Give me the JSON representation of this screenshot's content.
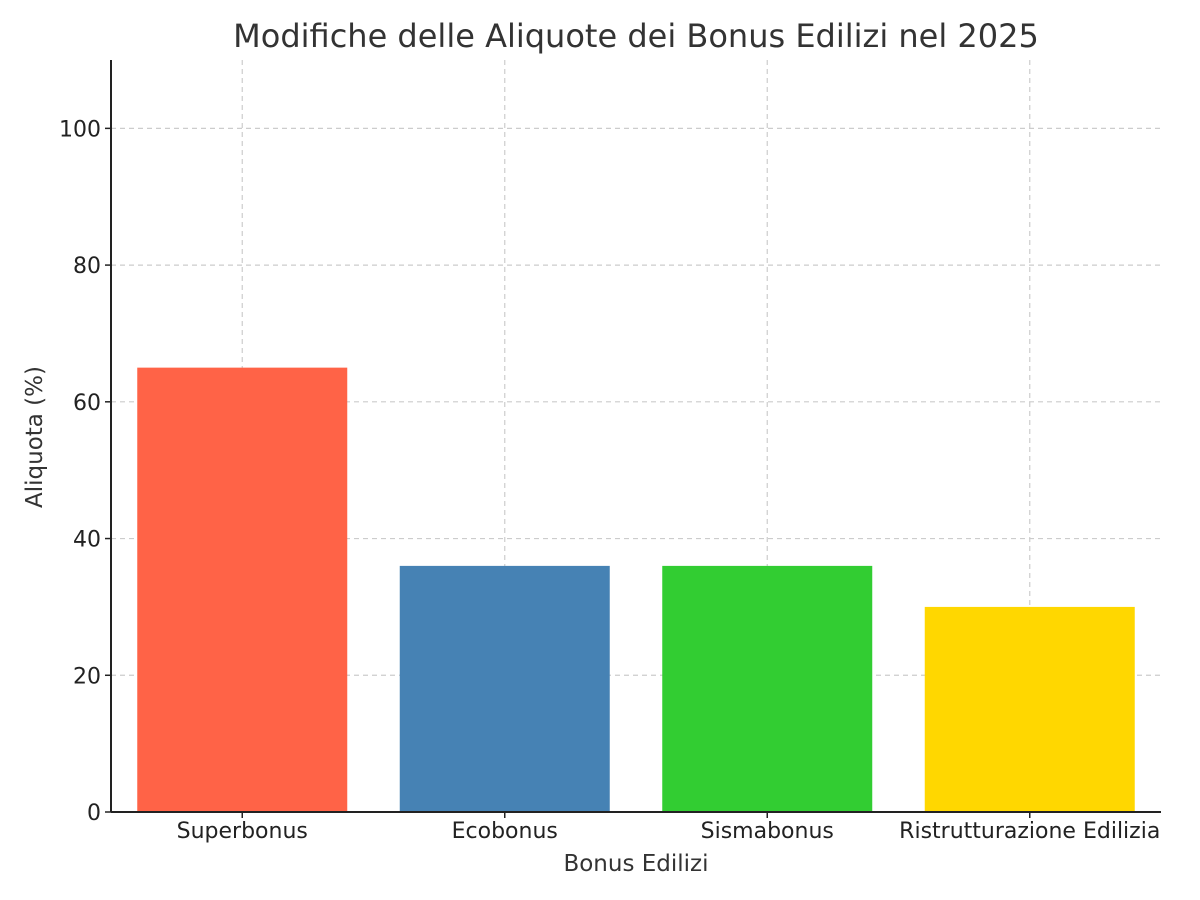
{
  "chart_data": {
    "type": "bar",
    "title": "Modifiche delle Aliquote dei Bonus Edilizi nel 2025",
    "xlabel": "Bonus Edilizi",
    "ylabel": "Aliquota (%)",
    "categories": [
      "Superbonus",
      "Ecobonus",
      "Sismabonus",
      "Ristrutturazione Edilizia"
    ],
    "values": [
      65,
      36,
      36,
      30
    ],
    "colors": [
      "#ff6347",
      "#4682b4",
      "#32cd32",
      "#ffd700"
    ],
    "ylim": [
      0,
      110
    ],
    "yticks": [
      0,
      20,
      40,
      60,
      80,
      100
    ],
    "grid": true,
    "legend": "none"
  }
}
